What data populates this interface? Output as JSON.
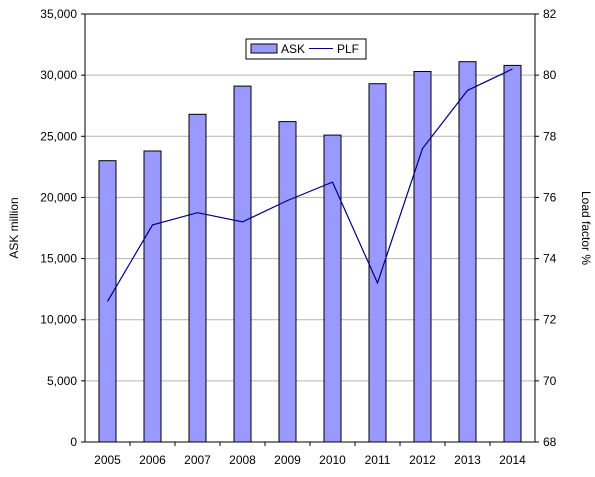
{
  "chart_data": {
    "type": "bar",
    "categories": [
      "2005",
      "2006",
      "2007",
      "2008",
      "2009",
      "2010",
      "2011",
      "2012",
      "2013",
      "2014"
    ],
    "series": [
      {
        "name": "ASK",
        "type": "bar",
        "axis": "left",
        "color": "#9999ff",
        "values": [
          23000,
          23800,
          26800,
          29100,
          26200,
          25100,
          29300,
          30300,
          31100,
          30800
        ]
      },
      {
        "name": "PLF",
        "type": "line",
        "axis": "right",
        "color": "#000080",
        "values": [
          72.6,
          75.1,
          75.5,
          75.2,
          75.9,
          76.5,
          73.2,
          77.6,
          79.5,
          80.2
        ]
      }
    ],
    "ylabel": "ASK million",
    "y2label": "Load factor %",
    "ylim": [
      0,
      35000
    ],
    "y2lim": [
      68,
      82
    ],
    "yticks": [
      "0",
      "5,000",
      "10,000",
      "15,000",
      "20,000",
      "25,000",
      "30,000",
      "35,000"
    ],
    "y2ticks": [
      "68",
      "70",
      "72",
      "74",
      "76",
      "78",
      "80",
      "82"
    ],
    "grid": true,
    "legend_position": "top-left"
  }
}
